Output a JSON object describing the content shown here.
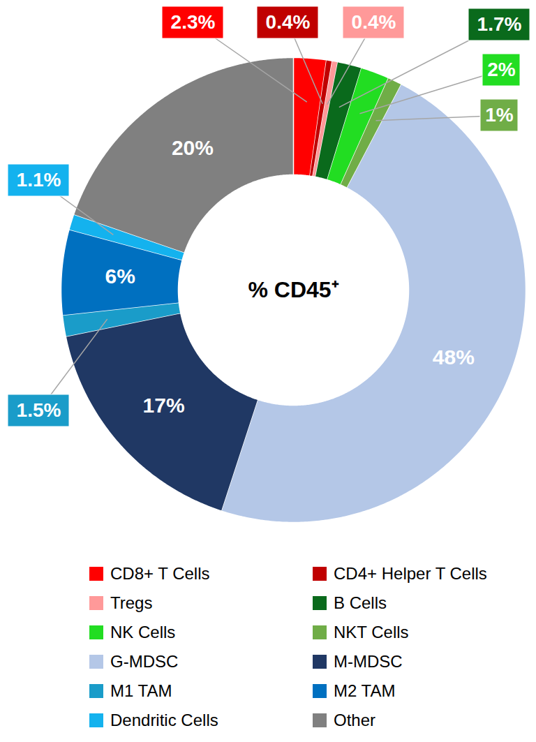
{
  "chart_data": {
    "type": "pie",
    "title": "% CD45⁺",
    "categories": [
      "CD8+ T Cells",
      "CD4+ Helper T Cells",
      "Tregs",
      "B Cells",
      "NK Cells",
      "NKT Cells",
      "G-MDSC",
      "M-MDSC",
      "M1 TAM",
      "M2 TAM",
      "Dendritic Cells",
      "Other"
    ],
    "values": [
      2.3,
      0.4,
      0.4,
      1.7,
      2,
      1,
      48,
      17,
      1.5,
      6,
      1.1,
      20
    ],
    "value_labels": [
      "2.3%",
      "0.4%",
      "0.4%",
      "1.7%",
      "2%",
      "1%",
      "48%",
      "17%",
      "1.5%",
      "6%",
      "1.1%",
      "20%"
    ],
    "colors": [
      "#ff0000",
      "#c00000",
      "#ff9999",
      "#0a6a1c",
      "#22dd22",
      "#70ad47",
      "#b4c7e7",
      "#203864",
      "#1a9cc9",
      "#0070c0",
      "#14b2ee",
      "#808080"
    ],
    "data_labels": true,
    "legend": "bottom"
  }
}
